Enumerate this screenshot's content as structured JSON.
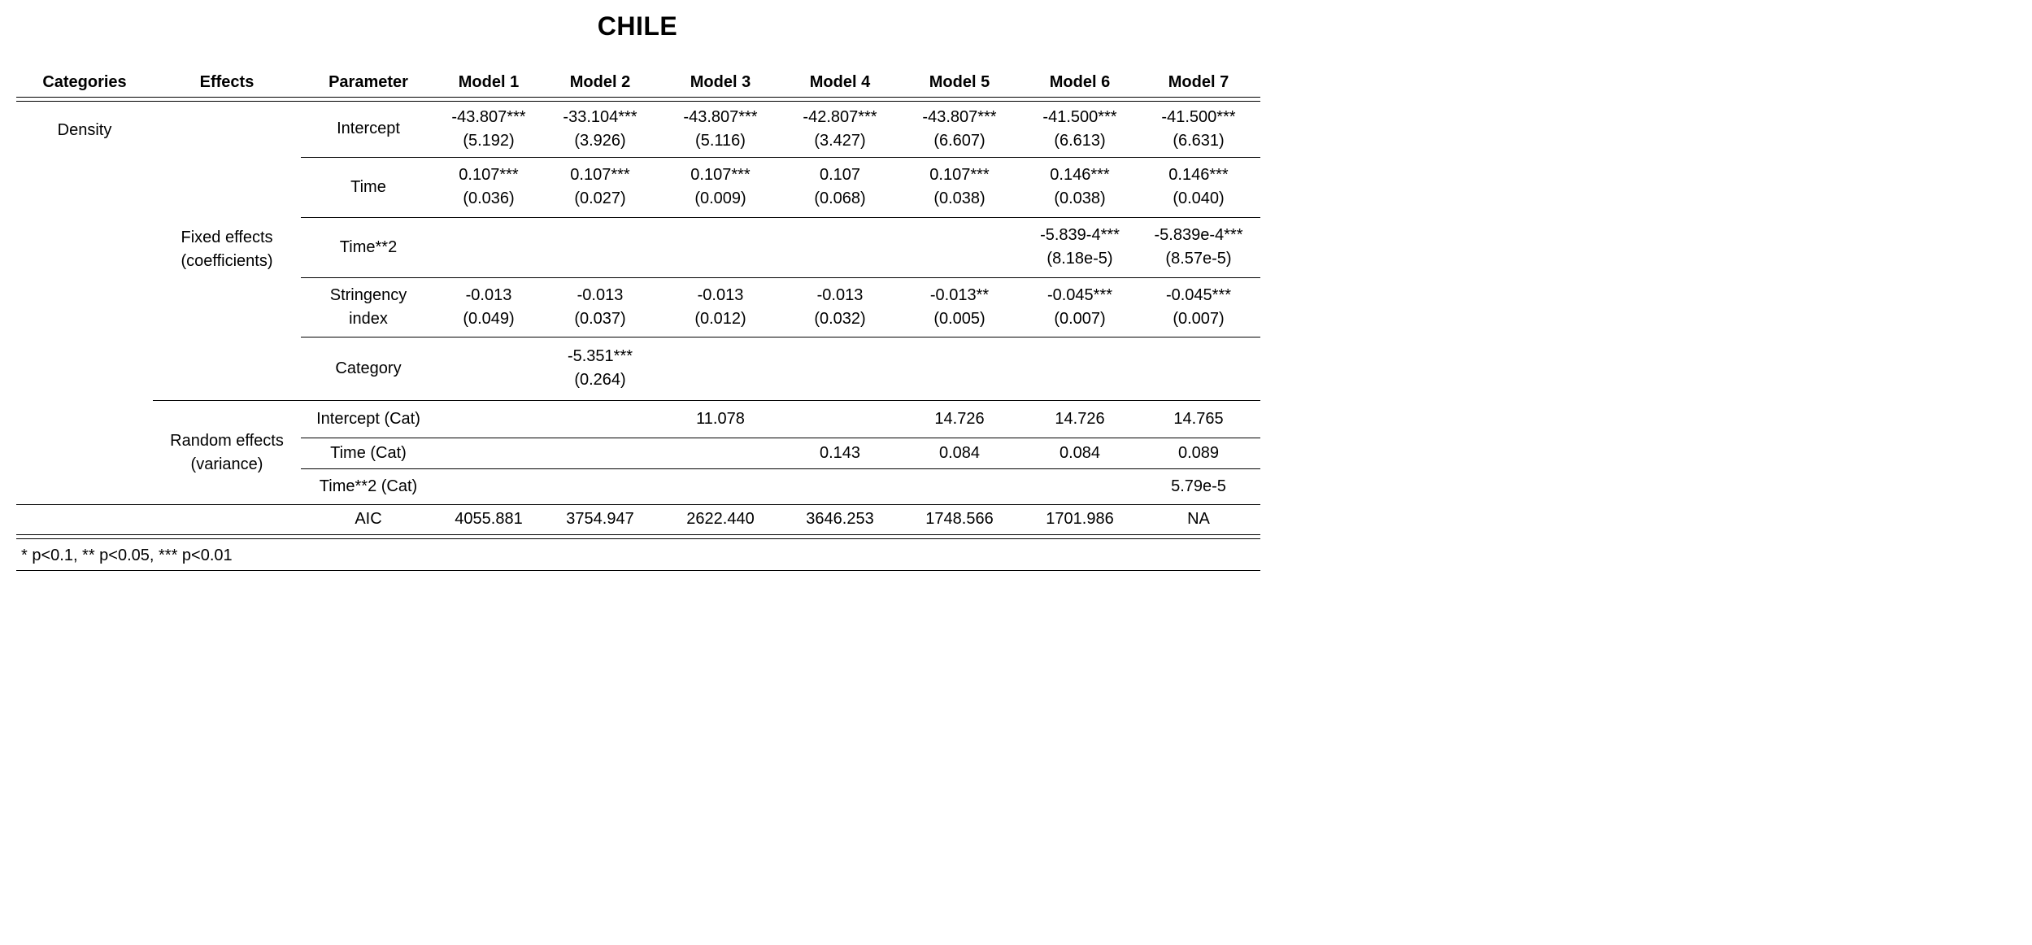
{
  "title": "CHILE",
  "headers": [
    "Categories",
    "Effects",
    "Parameter",
    "Model 1",
    "Model 2",
    "Model 3",
    "Model 4",
    "Model 5",
    "Model 6",
    "Model 7"
  ],
  "categories": {
    "density": "Density"
  },
  "effects": {
    "fixed": [
      "Fixed effects",
      "(coefficients)"
    ],
    "random": [
      "Random effects",
      "(variance)"
    ]
  },
  "parameters": {
    "intercept": "Intercept",
    "time": "Time",
    "time2": "Time**2",
    "stringency": [
      "Stringency",
      "index"
    ],
    "category": "Category",
    "intercept_cat": "Intercept (Cat)",
    "time_cat": "Time (Cat)",
    "time2_cat": "Time**2 (Cat)",
    "aic": "AIC"
  },
  "rows": {
    "intercept": [
      [
        "-43.807***",
        "(5.192)"
      ],
      [
        "-33.104***",
        "(3.926)"
      ],
      [
        "-43.807***",
        "(5.116)"
      ],
      [
        "-42.807***",
        "(3.427)"
      ],
      [
        "-43.807***",
        "(6.607)"
      ],
      [
        "-41.500***",
        "(6.613)"
      ],
      [
        "-41.500***",
        "(6.631)"
      ]
    ],
    "time": [
      [
        "0.107***",
        "(0.036)"
      ],
      [
        "0.107***",
        "(0.027)"
      ],
      [
        "0.107***",
        "(0.009)"
      ],
      [
        "0.107",
        "(0.068)"
      ],
      [
        "0.107***",
        "(0.038)"
      ],
      [
        "0.146***",
        "(0.038)"
      ],
      [
        "0.146***",
        "(0.040)"
      ]
    ],
    "time2": [
      [
        "",
        ""
      ],
      [
        "",
        ""
      ],
      [
        "",
        ""
      ],
      [
        "",
        ""
      ],
      [
        "",
        ""
      ],
      [
        "-5.839-4***",
        "(8.18e-5)"
      ],
      [
        "-5.839e-4***",
        "(8.57e-5)"
      ]
    ],
    "stringency": [
      [
        "-0.013",
        "(0.049)"
      ],
      [
        "-0.013",
        "(0.037)"
      ],
      [
        "-0.013",
        "(0.012)"
      ],
      [
        "-0.013",
        "(0.032)"
      ],
      [
        "-0.013**",
        "(0.005)"
      ],
      [
        "-0.045***",
        "(0.007)"
      ],
      [
        "-0.045***",
        "(0.007)"
      ]
    ],
    "category": [
      [
        "",
        ""
      ],
      [
        "-5.351***",
        "(0.264)"
      ],
      [
        "",
        ""
      ],
      [
        "",
        ""
      ],
      [
        "",
        ""
      ],
      [
        "",
        ""
      ],
      [
        "",
        ""
      ]
    ],
    "intercept_cat": [
      "",
      "",
      "11.078",
      "",
      "14.726",
      "14.726",
      "14.765"
    ],
    "time_cat": [
      "",
      "",
      "",
      "0.143",
      "0.084",
      "0.084",
      "0.089"
    ],
    "time2_cat": [
      "",
      "",
      "",
      "",
      "",
      "",
      "5.79e-5"
    ],
    "aic": [
      "4055.881",
      "3754.947",
      "2622.440",
      "3646.253",
      "1748.566",
      "1701.986",
      "NA"
    ]
  },
  "footnote": "* p<0.1, ** p<0.05, *** p<0.01"
}
